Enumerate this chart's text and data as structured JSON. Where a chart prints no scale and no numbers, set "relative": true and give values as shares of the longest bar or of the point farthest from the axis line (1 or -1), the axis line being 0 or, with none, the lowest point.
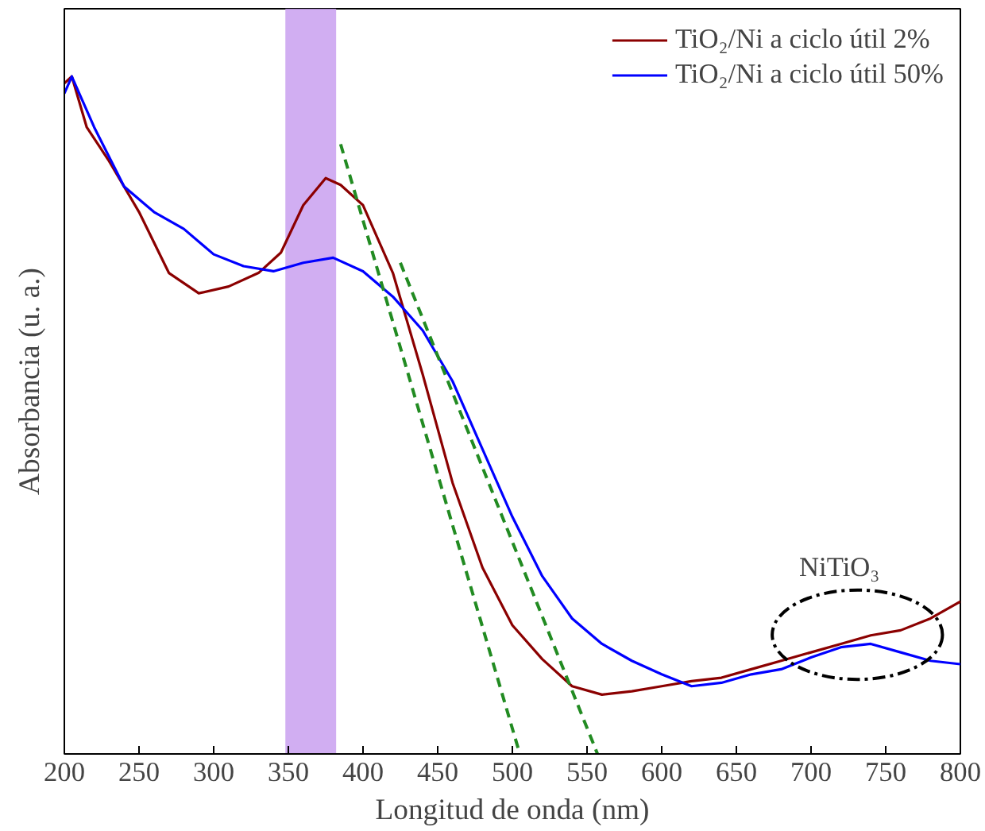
{
  "chart_data": {
    "type": "line",
    "relative": true,
    "xlabel": "Longitud de onda (nm)",
    "ylabel": "Absorbancia (u. a.)",
    "xlim": [
      200,
      800
    ],
    "xticks": [
      200,
      250,
      300,
      350,
      400,
      450,
      500,
      550,
      600,
      650,
      700,
      750,
      800
    ],
    "grid": false,
    "legend": "top right",
    "tick_labels": "x",
    "series": [
      {
        "name": "TiO₂/Ni a ciclo útil 2%",
        "color": "#8b0000",
        "x": [
          200,
          205,
          215,
          230,
          250,
          270,
          290,
          310,
          330,
          345,
          360,
          375,
          385,
          400,
          420,
          440,
          460,
          480,
          500,
          520,
          540,
          560,
          580,
          600,
          620,
          640,
          660,
          680,
          700,
          720,
          740,
          760,
          780,
          800
        ],
        "values": [
          0.99,
          1.0,
          0.925,
          0.875,
          0.8,
          0.71,
          0.68,
          0.69,
          0.71,
          0.74,
          0.81,
          0.85,
          0.84,
          0.81,
          0.71,
          0.56,
          0.4,
          0.275,
          0.19,
          0.14,
          0.1,
          0.0875,
          0.0925,
          0.1,
          0.1075,
          0.1125,
          0.125,
          0.1375,
          0.15,
          0.1625,
          0.175,
          0.1825,
          0.2,
          0.225
        ]
      },
      {
        "name": "TiO₂/Ni a ciclo útil 50%",
        "color": "#0000ff",
        "x": [
          200,
          205,
          220,
          240,
          260,
          280,
          300,
          320,
          340,
          360,
          380,
          400,
          420,
          440,
          460,
          480,
          500,
          520,
          540,
          560,
          580,
          600,
          620,
          640,
          660,
          680,
          700,
          720,
          740,
          760,
          780,
          800
        ],
        "values": [
          0.975,
          1.0,
          0.925,
          0.8375,
          0.8,
          0.775,
          0.7375,
          0.72,
          0.7125,
          0.725,
          0.7325,
          0.7125,
          0.675,
          0.625,
          0.55,
          0.45,
          0.35,
          0.2625,
          0.2,
          0.1625,
          0.1375,
          0.1175,
          0.1,
          0.105,
          0.1175,
          0.125,
          0.1425,
          0.1575,
          0.1625,
          0.15,
          0.1375,
          0.1325
        ]
      },
      {
        "color": "#228b22",
        "line_style": "dashed",
        "x": [
          385,
          505
        ],
        "values": [
          0.9,
          0
        ]
      },
      {
        "color": "#228b22",
        "line_style": "dashed",
        "x": [
          425,
          557
        ],
        "values": [
          0.725,
          0
        ]
      }
    ],
    "bands": [
      {
        "axis": "x",
        "from": 348,
        "to": 382,
        "color": "#c9a0f0"
      }
    ],
    "annotations": [
      "NiTiO₃"
    ]
  }
}
